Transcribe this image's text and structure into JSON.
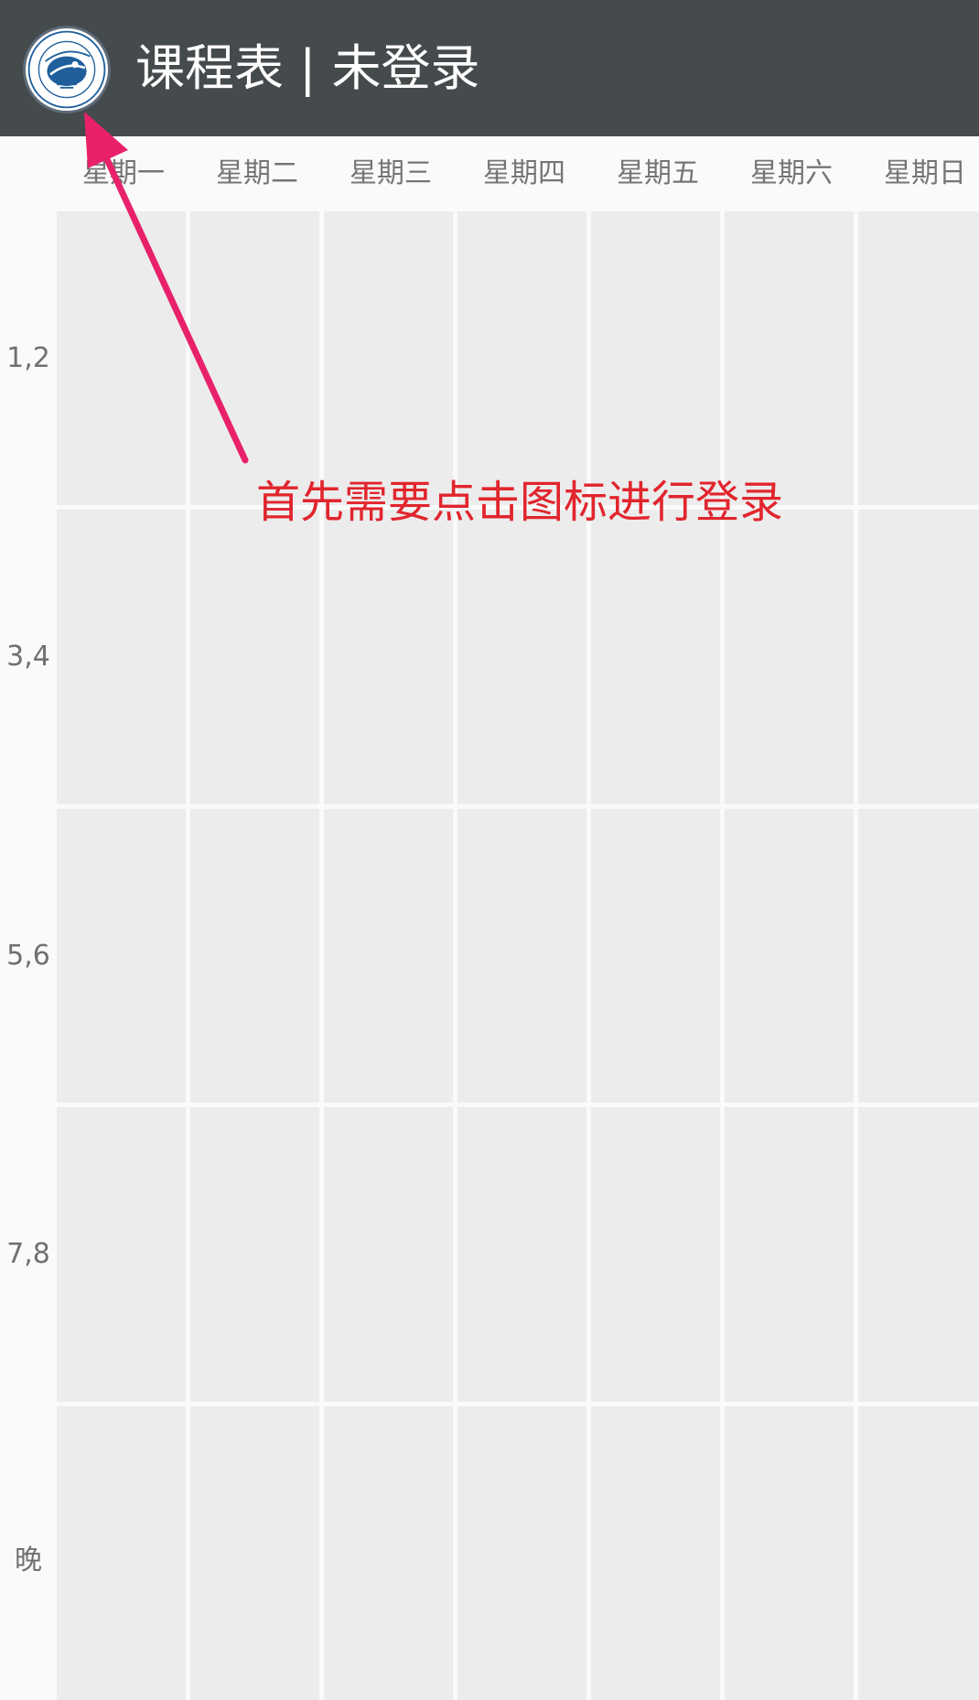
{
  "appbar": {
    "title": "课程表 | 未登录",
    "logo_icon": "university-logo-icon",
    "background": "#454a4c"
  },
  "days": [
    "星期一",
    "星期二",
    "星期三",
    "星期四",
    "星期五",
    "星期六",
    "星期日"
  ],
  "periods": [
    "1,2",
    "3,4",
    "5,6",
    "7,8",
    "晚"
  ],
  "annotation": {
    "text": "首先需要点击图标进行登录",
    "color": "#e1252d",
    "arrow_color": "#e8216a"
  },
  "colors": {
    "cell": "#ececec",
    "background": "#fafafa"
  }
}
